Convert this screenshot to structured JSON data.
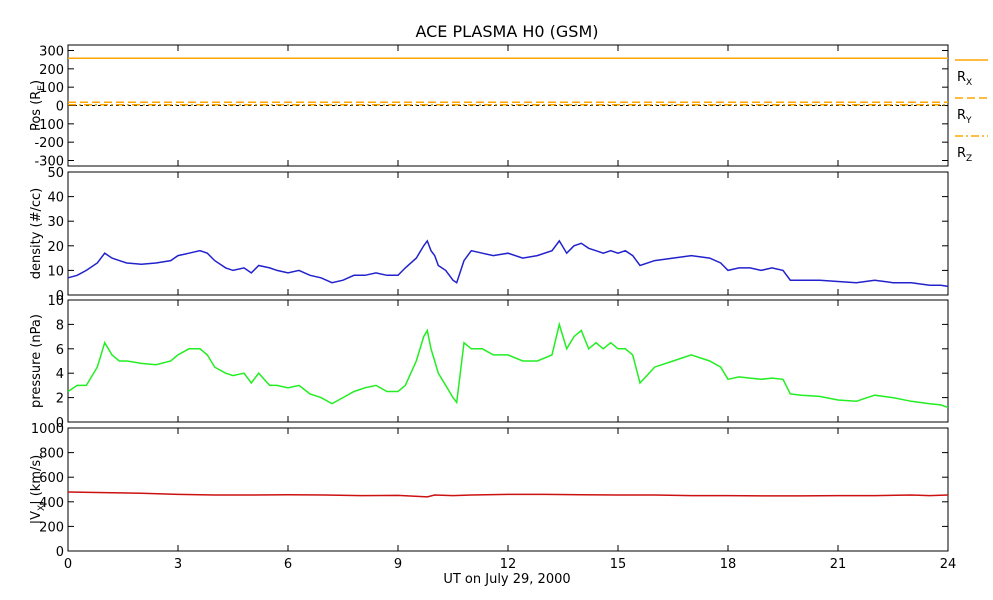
{
  "title": "ACE PLASMA H0 (GSM)",
  "xlabel": "UT on July 29, 2000",
  "colors": {
    "axis": "#000000",
    "Rx": "#FFA500",
    "Ry": "#FFA500",
    "Rz": "#FFA500",
    "density": "#2222CC",
    "pressure": "#22EE22",
    "vx": "#CC1111"
  },
  "chart_data": [
    {
      "type": "line",
      "panel": "position",
      "ylabel": "Pos (RE)",
      "ylabel_base": "Pos (R",
      "ylabel_sub": "E",
      "ylabel_end": ")",
      "xlim": [
        0,
        24
      ],
      "ylim": [
        -330,
        330
      ],
      "yticks": [
        300,
        200,
        100,
        0,
        -100,
        -200,
        -300
      ],
      "xticks": [
        0,
        3,
        6,
        9,
        12,
        15,
        18,
        21,
        24
      ],
      "zero_line": true,
      "series": [
        {
          "name": "RX",
          "base": "R",
          "sub": "X",
          "style": "solid",
          "x": [
            0,
            24
          ],
          "y": [
            258,
            258
          ]
        },
        {
          "name": "RY",
          "base": "R",
          "sub": "Y",
          "style": "dashed",
          "x": [
            0,
            24
          ],
          "y": [
            18,
            18
          ]
        },
        {
          "name": "RZ",
          "base": "R",
          "sub": "Z",
          "style": "dashdot",
          "x": [
            0,
            24
          ],
          "y": [
            4,
            4
          ]
        }
      ]
    },
    {
      "type": "line",
      "panel": "density",
      "ylabel": "density (#/cc)",
      "xlim": [
        0,
        24
      ],
      "ylim": [
        0,
        50
      ],
      "yticks": [
        50,
        40,
        30,
        20,
        10,
        0
      ],
      "xticks": [
        0,
        3,
        6,
        9,
        12,
        15,
        18,
        21,
        24
      ],
      "series": [
        {
          "name": "density",
          "x": [
            0,
            0.25,
            0.5,
            0.8,
            1.0,
            1.2,
            1.4,
            1.6,
            2.0,
            2.4,
            2.8,
            3.0,
            3.3,
            3.6,
            3.8,
            4.0,
            4.3,
            4.5,
            4.8,
            5.0,
            5.2,
            5.5,
            5.7,
            6.0,
            6.3,
            6.6,
            6.9,
            7.2,
            7.5,
            7.8,
            8.1,
            8.4,
            8.7,
            9.0,
            9.2,
            9.5,
            9.7,
            9.8,
            9.9,
            10.0,
            10.1,
            10.3,
            10.5,
            10.6,
            10.8,
            11.0,
            11.3,
            11.6,
            12.0,
            12.4,
            12.8,
            13.2,
            13.4,
            13.6,
            13.8,
            14.0,
            14.2,
            14.4,
            14.6,
            14.8,
            15.0,
            15.2,
            15.4,
            15.6,
            16.0,
            16.5,
            17.0,
            17.5,
            17.8,
            18.0,
            18.3,
            18.6,
            18.9,
            19.2,
            19.5,
            19.7,
            20.0,
            20.5,
            21.0,
            21.5,
            22.0,
            22.5,
            23.0,
            23.5,
            23.8,
            24.0
          ],
          "y": [
            7,
            8,
            10,
            13,
            17,
            15,
            14,
            13,
            12.5,
            13,
            14,
            16,
            17,
            18,
            17,
            14,
            11,
            10,
            11,
            9,
            12,
            11,
            10,
            9,
            10,
            8,
            7,
            5,
            6,
            8,
            8,
            9,
            8,
            8,
            11,
            15,
            20,
            22,
            18,
            16,
            12,
            10,
            6,
            5,
            14,
            18,
            17,
            16,
            17,
            15,
            16,
            18,
            22,
            17,
            20,
            21,
            19,
            18,
            17,
            18,
            17,
            18,
            16,
            12,
            14,
            15,
            16,
            15,
            13,
            10,
            11,
            11,
            10,
            11,
            10,
            6,
            6,
            6,
            5.5,
            5,
            6,
            5,
            5,
            4,
            4,
            3.5
          ]
        }
      ]
    },
    {
      "type": "line",
      "panel": "pressure",
      "ylabel": "pressure (nPa)",
      "xlim": [
        0,
        24
      ],
      "ylim": [
        0,
        10
      ],
      "yticks": [
        10,
        8,
        6,
        4,
        2,
        0
      ],
      "xticks": [
        0,
        3,
        6,
        9,
        12,
        15,
        18,
        21,
        24
      ],
      "series": [
        {
          "name": "pressure",
          "x": [
            0,
            0.25,
            0.5,
            0.8,
            1.0,
            1.2,
            1.4,
            1.6,
            2.0,
            2.4,
            2.8,
            3.0,
            3.3,
            3.6,
            3.8,
            4.0,
            4.3,
            4.5,
            4.8,
            5.0,
            5.2,
            5.5,
            5.7,
            6.0,
            6.3,
            6.6,
            6.9,
            7.2,
            7.5,
            7.8,
            8.1,
            8.4,
            8.7,
            9.0,
            9.2,
            9.5,
            9.7,
            9.8,
            9.9,
            10.0,
            10.1,
            10.3,
            10.5,
            10.6,
            10.8,
            11.0,
            11.3,
            11.6,
            12.0,
            12.4,
            12.8,
            13.2,
            13.4,
            13.6,
            13.8,
            14.0,
            14.2,
            14.4,
            14.6,
            14.8,
            15.0,
            15.2,
            15.4,
            15.6,
            16.0,
            16.5,
            17.0,
            17.5,
            17.8,
            18.0,
            18.3,
            18.6,
            18.9,
            19.2,
            19.5,
            19.7,
            20.0,
            20.5,
            21.0,
            21.5,
            22.0,
            22.5,
            23.0,
            23.5,
            23.8,
            24.0
          ],
          "y": [
            2.5,
            3,
            3,
            4.5,
            6.5,
            5.5,
            5,
            5,
            4.8,
            4.7,
            5,
            5.5,
            6,
            6,
            5.5,
            4.5,
            4,
            3.8,
            4,
            3.2,
            4,
            3,
            3,
            2.8,
            3,
            2.3,
            2,
            1.5,
            2,
            2.5,
            2.8,
            3,
            2.5,
            2.5,
            3,
            5,
            7,
            7.5,
            6,
            5,
            4,
            3,
            2,
            1.6,
            6.5,
            6,
            6,
            5.5,
            5.5,
            5,
            5,
            5.5,
            8,
            6,
            7,
            7.5,
            6,
            6.5,
            6,
            6.5,
            6,
            6,
            5.5,
            3.2,
            4.5,
            5,
            5.5,
            5,
            4.5,
            3.5,
            3.7,
            3.6,
            3.5,
            3.6,
            3.5,
            2.3,
            2.2,
            2.1,
            1.8,
            1.7,
            2.2,
            2,
            1.7,
            1.5,
            1.4,
            1.2
          ]
        }
      ]
    },
    {
      "type": "line",
      "panel": "vx",
      "ylabel": "|VX| (km/s)",
      "ylabel_base": "|V",
      "ylabel_sub": "X",
      "ylabel_end": "| (km/s)",
      "xlim": [
        0,
        24
      ],
      "ylim": [
        0,
        1000
      ],
      "yticks": [
        1000,
        800,
        600,
        400,
        200,
        0
      ],
      "xticks": [
        0,
        3,
        6,
        9,
        12,
        15,
        18,
        21,
        24
      ],
      "xticklabels": [
        "0",
        "3",
        "6",
        "9",
        "12",
        "15",
        "18",
        "21",
        "24"
      ],
      "series": [
        {
          "name": "vx",
          "x": [
            0,
            1,
            2,
            3,
            4,
            5,
            6,
            7,
            8,
            9,
            9.8,
            10,
            10.5,
            11,
            12,
            13,
            14,
            15,
            16,
            17,
            18,
            19,
            20,
            21,
            22,
            23,
            23.5,
            24
          ],
          "y": [
            480,
            475,
            470,
            460,
            455,
            455,
            458,
            455,
            450,
            452,
            440,
            455,
            450,
            455,
            460,
            460,
            458,
            455,
            455,
            450,
            450,
            448,
            448,
            450,
            450,
            455,
            450,
            455
          ]
        }
      ]
    }
  ]
}
